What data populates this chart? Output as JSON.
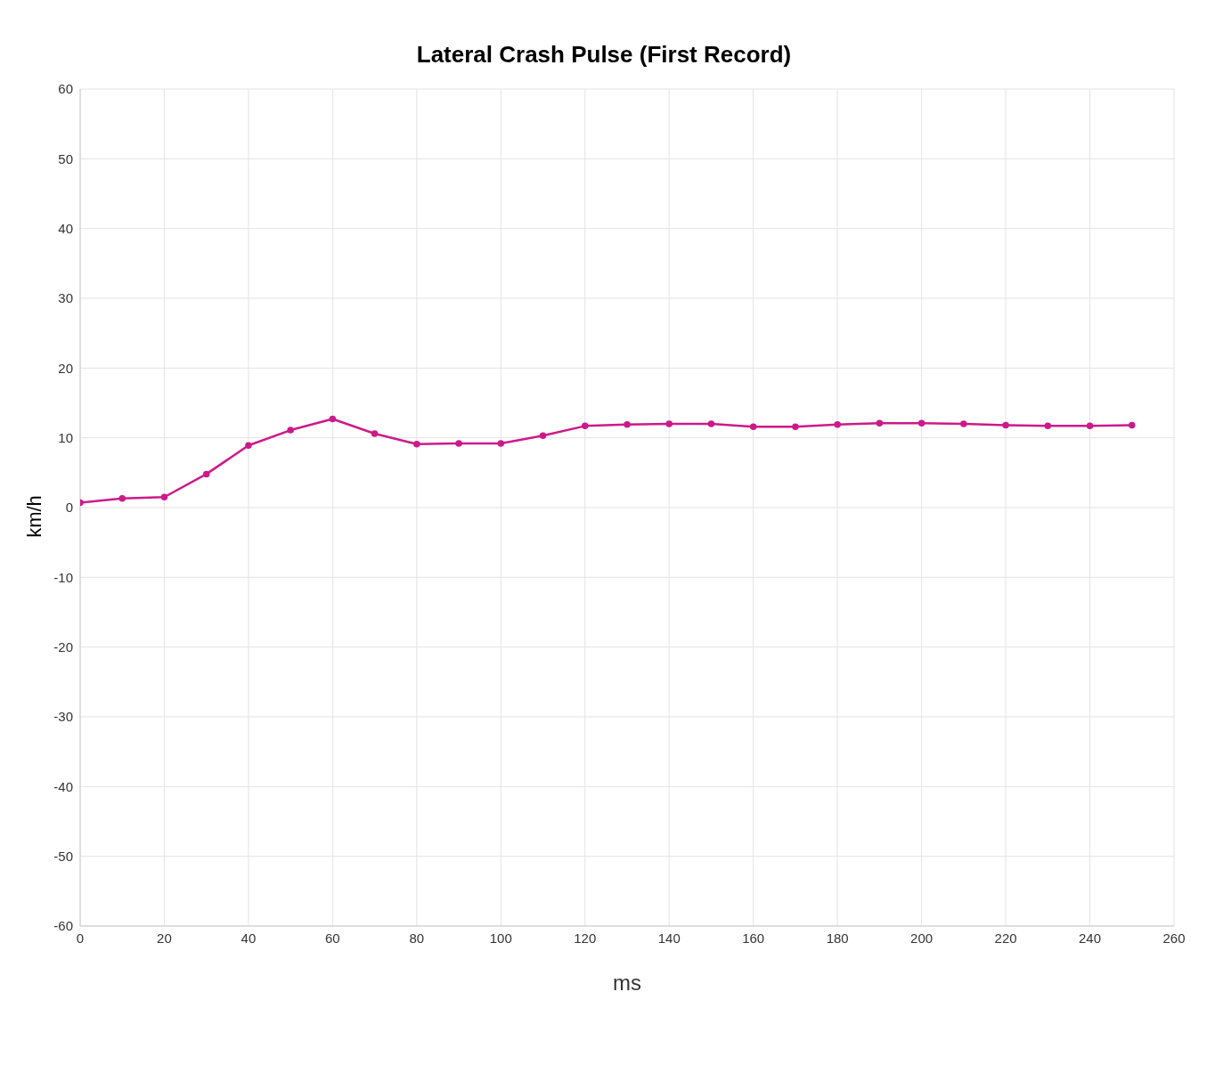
{
  "chart_data": {
    "type": "line",
    "title": "Lateral Crash Pulse (First Record)",
    "xlabel": "ms",
    "ylabel": "km/h",
    "x": [
      0,
      10,
      20,
      30,
      40,
      50,
      60,
      70,
      80,
      90,
      100,
      110,
      120,
      130,
      140,
      150,
      160,
      170,
      180,
      190,
      200,
      210,
      220,
      230,
      240,
      250
    ],
    "series": [
      {
        "color": "#cc1a8a",
        "values": [
          0.7,
          1.3,
          1.5,
          4.8,
          8.9,
          11.1,
          12.7,
          10.6,
          9.1,
          9.2,
          9.2,
          10.3,
          11.7,
          11.9,
          12.0,
          12.0,
          11.6,
          11.6,
          11.9,
          12.1,
          12.1,
          12.0,
          11.8,
          11.7,
          11.7,
          11.8
        ]
      }
    ],
    "xlim": [
      0,
      260
    ],
    "xticks": [
      0,
      20,
      40,
      60,
      80,
      100,
      120,
      140,
      160,
      180,
      200,
      220,
      240,
      260
    ],
    "ylim": [
      -60,
      60
    ],
    "yticks": [
      -60,
      -50,
      -40,
      -30,
      -20,
      -10,
      0,
      10,
      20,
      30,
      40,
      50,
      60
    ],
    "grid": true,
    "marker": "circle",
    "line_style": "solid",
    "legend": false
  }
}
